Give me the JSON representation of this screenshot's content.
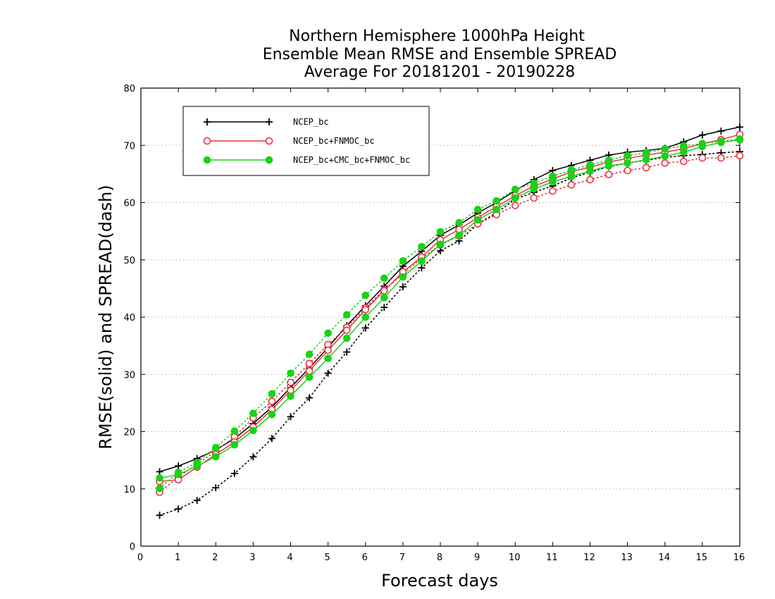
{
  "chart_data": {
    "type": "line",
    "title": [
      "Northern Hemisphere 1000hPa Height",
      "Ensemble Mean RMSE and Ensemble SPREAD",
      "Average For 20181201 - 20190228"
    ],
    "xlabel": "Forecast days",
    "ylabel": "RMSE(solid) and SPREAD(dash)",
    "xlim": [
      0,
      16
    ],
    "ylim": [
      0,
      80
    ],
    "xticks": [
      "0",
      "1",
      "2",
      "3",
      "4",
      "5",
      "6",
      "7",
      "8",
      "9",
      "10",
      "11",
      "12",
      "13",
      "14",
      "15",
      "16"
    ],
    "yticks": [
      "0",
      "10",
      "20",
      "30",
      "40",
      "50",
      "60",
      "70",
      "80"
    ],
    "grid": true,
    "legend_position": "top-left",
    "x": [
      0.5,
      1,
      1.5,
      2,
      2.5,
      3,
      3.5,
      4,
      4.5,
      5,
      5.5,
      6,
      6.5,
      7,
      7.5,
      8,
      8.5,
      9,
      9.5,
      10,
      10.5,
      11,
      11.5,
      12,
      12.5,
      13,
      13.5,
      14,
      14.5,
      15,
      15.5,
      16
    ],
    "series": [
      {
        "name": "NCEP_bc",
        "color": "#000000",
        "marker": "plus",
        "rmse": [
          13.0,
          14.0,
          15.3,
          16.8,
          18.8,
          21.4,
          24.3,
          27.7,
          31.1,
          34.7,
          38.5,
          42.0,
          45.4,
          48.9,
          51.5,
          54.3,
          56.1,
          58.2,
          60.0,
          62.1,
          64.0,
          65.6,
          66.5,
          67.4,
          68.3,
          68.8,
          69.1,
          69.5,
          70.6,
          71.8,
          72.5,
          73.2
        ],
        "spread": [
          5.4,
          6.5,
          8.0,
          10.2,
          12.7,
          15.6,
          18.8,
          22.6,
          25.9,
          30.2,
          33.9,
          38.1,
          41.7,
          45.3,
          48.6,
          51.6,
          53.3,
          56.3,
          58.2,
          60.6,
          61.8,
          62.9,
          64.3,
          65.3,
          66.3,
          66.9,
          67.4,
          67.9,
          68.2,
          68.4,
          68.7,
          68.9
        ]
      },
      {
        "name": "NCEP_bc+FNMOC_bc",
        "color": "#e8323c",
        "marker": "open-circle",
        "rmse": [
          11.3,
          11.6,
          13.8,
          16.0,
          18.2,
          20.8,
          23.9,
          27.2,
          30.6,
          34.2,
          37.7,
          41.3,
          44.6,
          47.9,
          50.5,
          53.5,
          55.3,
          57.4,
          59.3,
          61.2,
          62.9,
          64.1,
          65.4,
          66.2,
          67.1,
          67.7,
          68.3,
          68.8,
          69.4,
          70.3,
          71.0,
          71.9
        ],
        "spread": [
          9.4,
          12.1,
          14.3,
          16.6,
          19.1,
          22.4,
          25.3,
          28.6,
          31.9,
          35.2,
          38.2,
          41.6,
          44.8,
          47.5,
          50.3,
          52.6,
          54.2,
          56.3,
          57.9,
          59.5,
          60.8,
          62.0,
          63.1,
          64.0,
          64.9,
          65.6,
          66.1,
          66.9,
          67.2,
          67.8,
          67.8,
          68.2
        ]
      },
      {
        "name": "NCEP_bc+CMC_bc+FNMOC_bc",
        "color": "#19d219",
        "marker": "filled-circle",
        "rmse": [
          11.9,
          12.5,
          14.0,
          15.6,
          17.7,
          20.2,
          23.0,
          26.2,
          29.5,
          32.8,
          36.3,
          40.0,
          43.4,
          47.0,
          49.8,
          52.7,
          54.3,
          57.0,
          58.8,
          60.8,
          62.4,
          63.6,
          64.6,
          65.5,
          66.4,
          66.9,
          67.5,
          68.1,
          68.8,
          69.8,
          70.5,
          71.0
        ],
        "spread": [
          10.1,
          12.9,
          14.6,
          17.2,
          20.1,
          23.2,
          26.6,
          30.2,
          33.5,
          37.2,
          40.4,
          43.8,
          46.8,
          49.8,
          52.3,
          54.9,
          56.5,
          58.8,
          60.3,
          62.3,
          63.4,
          64.6,
          65.7,
          66.6,
          67.4,
          68.2,
          68.7,
          69.4,
          69.9,
          70.3,
          70.7,
          71.1
        ]
      }
    ]
  }
}
